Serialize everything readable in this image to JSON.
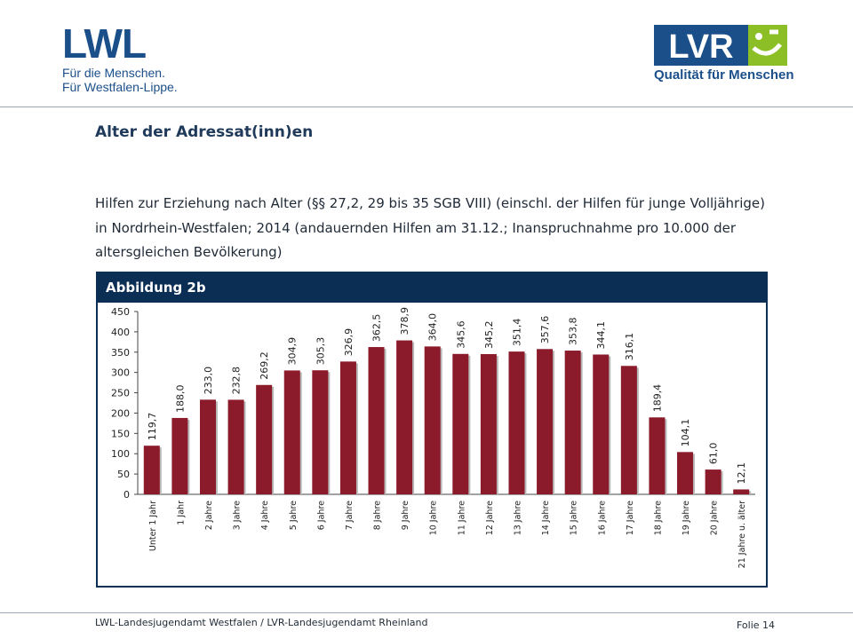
{
  "header": {
    "lwl_logo": {
      "word": "LWL",
      "line1": "Für die Menschen.",
      "line2": "Für Westfalen-Lippe."
    },
    "lvr_logo": {
      "word": "LVR",
      "tagline": "Qualität für Menschen"
    }
  },
  "title": "Alter der Adressat(inn)en",
  "description": "Hilfen zur Erziehung nach Alter (§§ 27,2, 29 bis 35 SGB VIII) (einschl. der Hilfen für junge Volljährige) in Nordrhein-Westfalen; 2014 (andauernden Hilfen am 31.12.; Inanspruchnahme pro 10.000 der altersgleichen Bevölkerung)",
  "figure_label": "Abbildung 2b",
  "chart_data": {
    "type": "bar",
    "categories": [
      "Unter 1 Jahr",
      "1 Jahr",
      "2 Jahre",
      "3 Jahre",
      "4 Jahre",
      "5 Jahre",
      "6 Jahre",
      "7 Jahre",
      "8 Jahre",
      "9 Jahre",
      "10 Jahre",
      "11 Jahre",
      "12 Jahre",
      "13 Jahre",
      "14 Jahre",
      "15 Jahre",
      "16 Jahre",
      "17 Jahre",
      "18 Jahre",
      "19 Jahre",
      "20 Jahre",
      "21 Jahre u. älter"
    ],
    "values": [
      119.7,
      188.0,
      233.0,
      232.8,
      269.2,
      304.9,
      305.3,
      326.9,
      362.5,
      378.9,
      364.0,
      345.6,
      345.2,
      351.4,
      357.6,
      353.8,
      344.1,
      316.1,
      189.4,
      104.1,
      61.0,
      12.1
    ],
    "value_labels": [
      "119,7",
      "188,0",
      "233,0",
      "232,8",
      "269,2",
      "304,9",
      "305,3",
      "326,9",
      "362,5",
      "378,9",
      "364,0",
      "345,6",
      "345,2",
      "351,4",
      "357,6",
      "353,8",
      "344,1",
      "316,1",
      "189,4",
      "104,1",
      "61,0",
      "12,1"
    ],
    "ylim": [
      0,
      450
    ],
    "yticks": [
      0,
      50,
      100,
      150,
      200,
      250,
      300,
      350,
      400,
      450
    ],
    "bar_color": "#8b1a2b",
    "grid": false,
    "title": "",
    "xlabel": "",
    "ylabel": ""
  },
  "colors": {
    "navy": "#0b2e55",
    "lwl_blue": "#1b4f8a",
    "lvr_green": "#8cbf26"
  },
  "footer": {
    "left": "LWL-Landesjugendamt Westfalen / LVR-Landesjugendamt Rheinland",
    "right": "Folie 14"
  }
}
